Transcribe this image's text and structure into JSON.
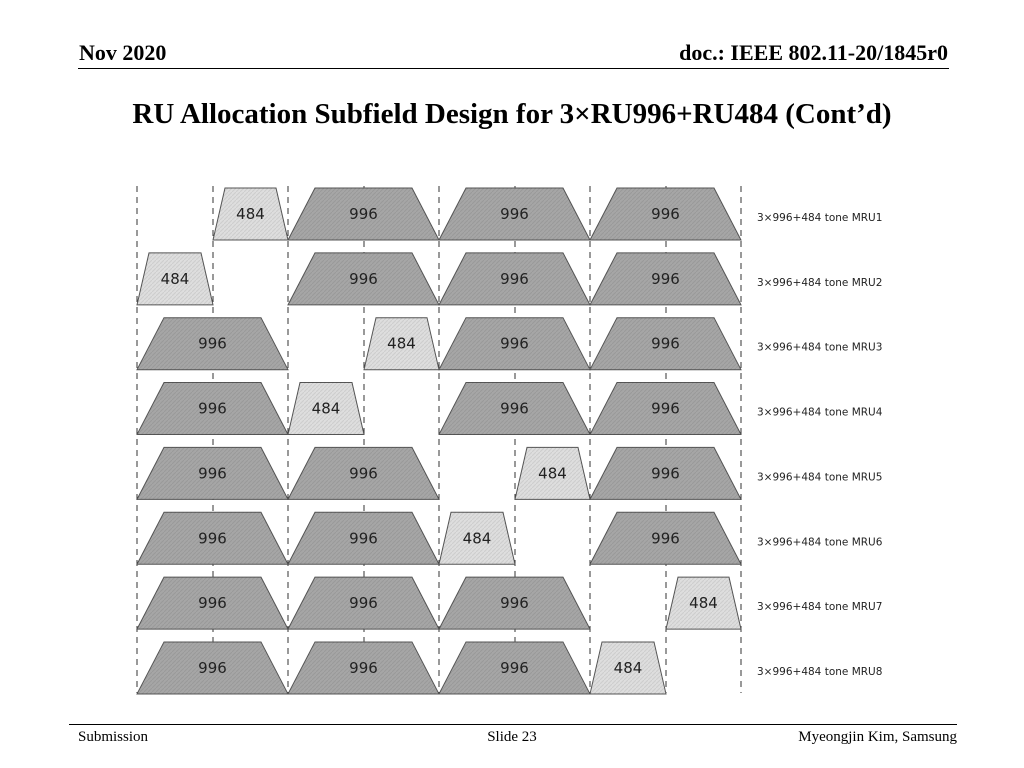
{
  "header": {
    "date": "Nov 2020",
    "doc": "doc.: IEEE 802.11-20/1845r0"
  },
  "title": "RU Allocation Subfield Design for 3×RU996+RU484 (Cont’d)",
  "footer": {
    "left": "Submission",
    "center": "Slide 23",
    "right": "Myeongjin Kim, Samsung"
  },
  "colors": {
    "ru996_fill": "#a6a6a6",
    "ru484_fill": "#dedede",
    "outline": "#555555"
  },
  "diagram": {
    "rows": [
      {
        "label": "3×996+484 tone MRU1",
        "blocks": [
          {
            "type": "484",
            "slot": 1
          },
          {
            "type": "996",
            "slot": 1
          },
          {
            "type": "996",
            "slot": 2
          },
          {
            "type": "996",
            "slot": 3
          }
        ]
      },
      {
        "label": "3×996+484 tone MRU2",
        "blocks": [
          {
            "type": "484",
            "slot": 0
          },
          {
            "type": "996",
            "slot": 1
          },
          {
            "type": "996",
            "slot": 2
          },
          {
            "type": "996",
            "slot": 3
          }
        ]
      },
      {
        "label": "3×996+484 tone MRU3",
        "blocks": [
          {
            "type": "996",
            "slot": 0
          },
          {
            "type": "484",
            "slot": 3
          },
          {
            "type": "996",
            "slot": 2
          },
          {
            "type": "996",
            "slot": 3
          }
        ]
      },
      {
        "label": "3×996+484 tone MRU4",
        "blocks": [
          {
            "type": "996",
            "slot": 0
          },
          {
            "type": "484",
            "slot": 2
          },
          {
            "type": "996",
            "slot": 2
          },
          {
            "type": "996",
            "slot": 3
          }
        ]
      },
      {
        "label": "3×996+484 tone MRU5",
        "blocks": [
          {
            "type": "996",
            "slot": 0
          },
          {
            "type": "996",
            "slot": 1
          },
          {
            "type": "484",
            "slot": 5
          },
          {
            "type": "996",
            "slot": 3
          }
        ]
      },
      {
        "label": "3×996+484 tone MRU6",
        "blocks": [
          {
            "type": "996",
            "slot": 0
          },
          {
            "type": "996",
            "slot": 1
          },
          {
            "type": "484",
            "slot": 4
          },
          {
            "type": "996",
            "slot": 3
          }
        ]
      },
      {
        "label": "3×996+484 tone MRU7",
        "blocks": [
          {
            "type": "996",
            "slot": 0
          },
          {
            "type": "996",
            "slot": 1
          },
          {
            "type": "996",
            "slot": 2
          },
          {
            "type": "484",
            "slot": 7
          }
        ]
      },
      {
        "label": "3×996+484 tone MRU8",
        "blocks": [
          {
            "type": "996",
            "slot": 0
          },
          {
            "type": "996",
            "slot": 1
          },
          {
            "type": "996",
            "slot": 2
          },
          {
            "type": "484",
            "slot": 6
          }
        ]
      }
    ]
  }
}
